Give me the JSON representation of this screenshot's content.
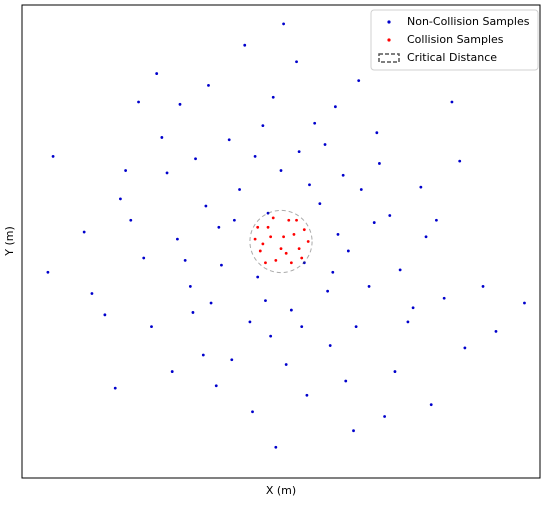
{
  "chart_data": {
    "type": "scatter",
    "x_label": "X (m)",
    "y_label": "Y (m)",
    "xlim": [
      -10,
      10
    ],
    "ylim": [
      -10,
      10
    ],
    "legend": "upper right",
    "series": [
      {
        "name": "Non-Collision Samples",
        "color": "#0000cc",
        "x": [
          -0.5,
          1.8,
          -2.4,
          3.1,
          -1.2,
          0.7,
          -3.5,
          2.6,
          -0.9,
          4.2,
          -4.4,
          1.3,
          -2.0,
          5.1,
          -5.3,
          0.2,
          3.7,
          -3.0,
          6.0,
          -6.2,
          1.5,
          -1.6,
          2.2,
          -2.7,
          0.4,
          2.9,
          -4.0,
          4.6,
          -0.3,
          1.0,
          -6.8,
          6.9,
          -3.9,
          4.4,
          -1.1,
          0.6,
          7.8,
          -7.6,
          2.4,
          -2.3,
          0.9,
          -1.8,
          3.4,
          -3.3,
          1.9,
          -0.7,
          5.4,
          -5.0,
          3.0,
          -2.5,
          8.3,
          -8.8,
          -0.2,
          0.1,
          5.8,
          -4.8,
          6.6,
          -6.4,
          2.8,
          -1.4,
          1.1,
          -0.6,
          2.0,
          -2.9,
          3.6,
          -3.7,
          0.0,
          -0.4,
          4.9,
          -4.6,
          1.7,
          -1.9,
          5.6,
          -5.8,
          2.5,
          -2.8,
          7.1,
          -7.3,
          3.8,
          -3.4,
          9.4,
          -9.0,
          4.0,
          -5.5,
          0.8,
          -1.0,
          2.1,
          -4.2,
          6.3,
          -6.0
        ],
        "y": [
          1.2,
          -2.1,
          0.6,
          2.2,
          -3.4,
          3.8,
          -1.9,
          -0.4,
          -1.5,
          1.1,
          2.9,
          5.0,
          4.3,
          -2.8,
          -0.7,
          -5.2,
          4.6,
          -4.8,
          0.9,
          1.8,
          1.6,
          2.2,
          0.3,
          -2.6,
          -2.9,
          -3.6,
          0.1,
          -1.2,
          6.1,
          -6.5,
          -3.1,
          3.4,
          5.8,
          -5.5,
          -7.2,
          7.6,
          -1.9,
          0.4,
          2.8,
          -1.0,
          -0.9,
          0.9,
          -1.9,
          3.5,
          -4.4,
          4.9,
          2.3,
          -3.6,
          6.8,
          -6.1,
          -3.8,
          3.6,
          -8.7,
          9.2,
          -6.9,
          7.1,
          5.9,
          -6.2,
          -8.0,
          8.3,
          2.4,
          -2.5,
          -1.3,
          1.5,
          0.8,
          -0.8,
          3.0,
          -4.0,
          -3.4,
          4.4,
          4.1,
          -5.0,
          0.2,
          0.9,
          -5.9,
          6.6,
          -4.5,
          -2.2,
          3.3,
          -3.0,
          -2.6,
          -1.3,
          -7.4,
          5.9,
          -3.6,
          3.6,
          5.7,
          -5.5,
          -2.4,
          3.0
        ]
      },
      {
        "name": "Collision Samples",
        "color": "#ff0000",
        "x": [
          0.1,
          -0.5,
          0.7,
          -0.8,
          0.3,
          -0.2,
          0.9,
          -1.0,
          0.4,
          -0.6,
          0.8,
          -0.3,
          1.05,
          0.0,
          -0.4,
          0.5,
          -0.9,
          0.2,
          0.6,
          -0.7
        ],
        "y": [
          0.2,
          0.6,
          -0.3,
          -0.4,
          0.9,
          -0.8,
          0.5,
          0.1,
          -0.9,
          -0.9,
          -0.7,
          1.0,
          0.0,
          -0.3,
          0.2,
          0.3,
          0.6,
          -0.5,
          0.9,
          -0.1
        ]
      }
    ],
    "critical_distance": {
      "name": "Critical Distance",
      "x": 0,
      "y": 0,
      "radius": 1.2,
      "color": "#555555"
    }
  }
}
